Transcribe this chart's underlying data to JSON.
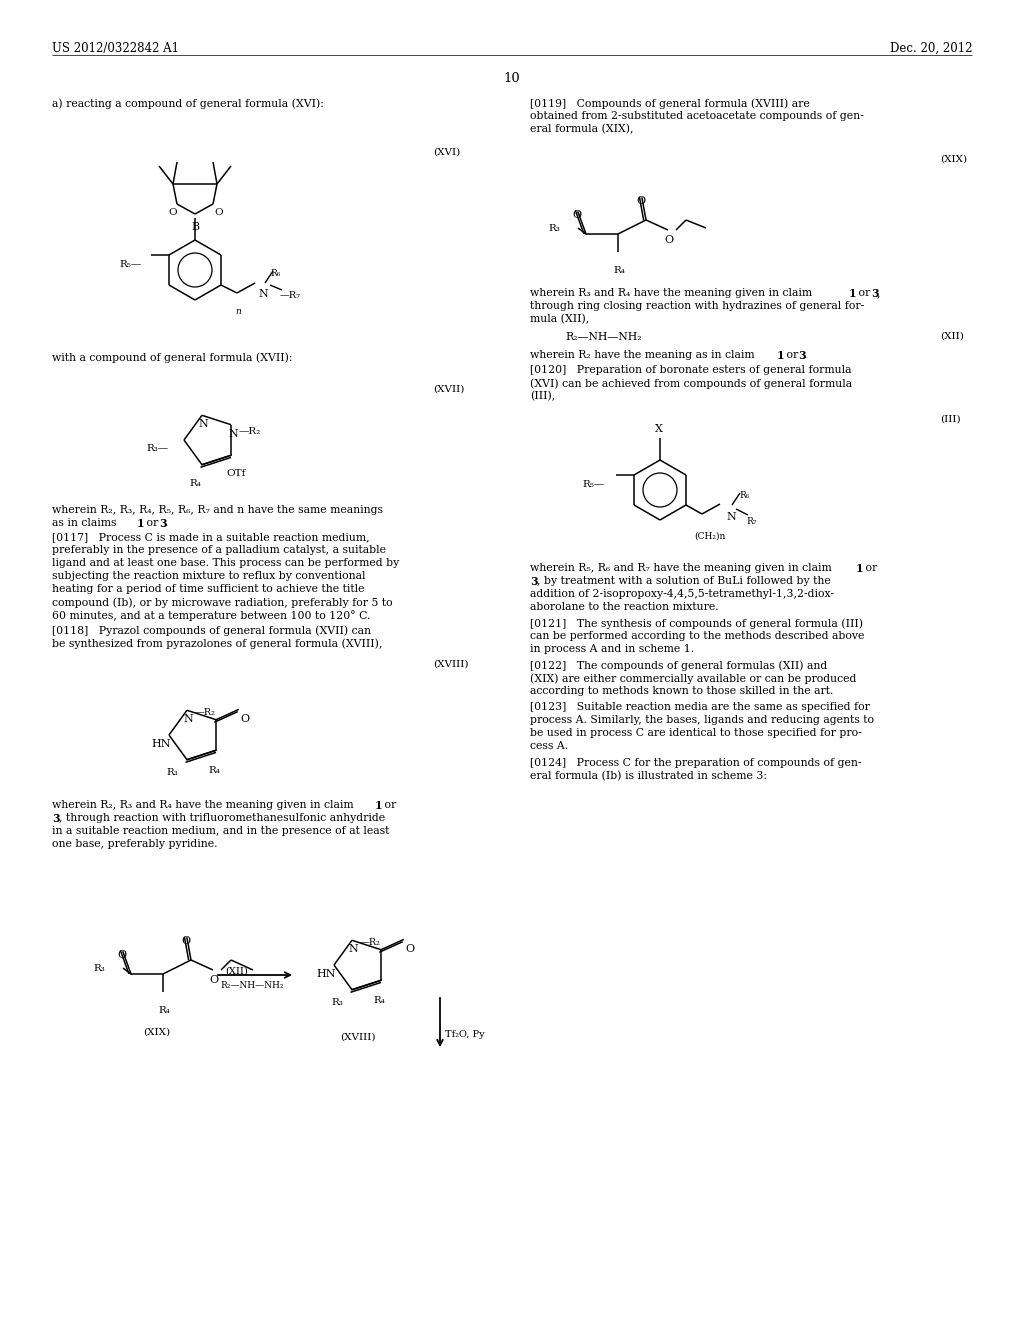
{
  "background_color": "#ffffff",
  "page_number": "10",
  "header_left": "US 2012/0322842 A1",
  "header_right": "Dec. 20, 2012"
}
